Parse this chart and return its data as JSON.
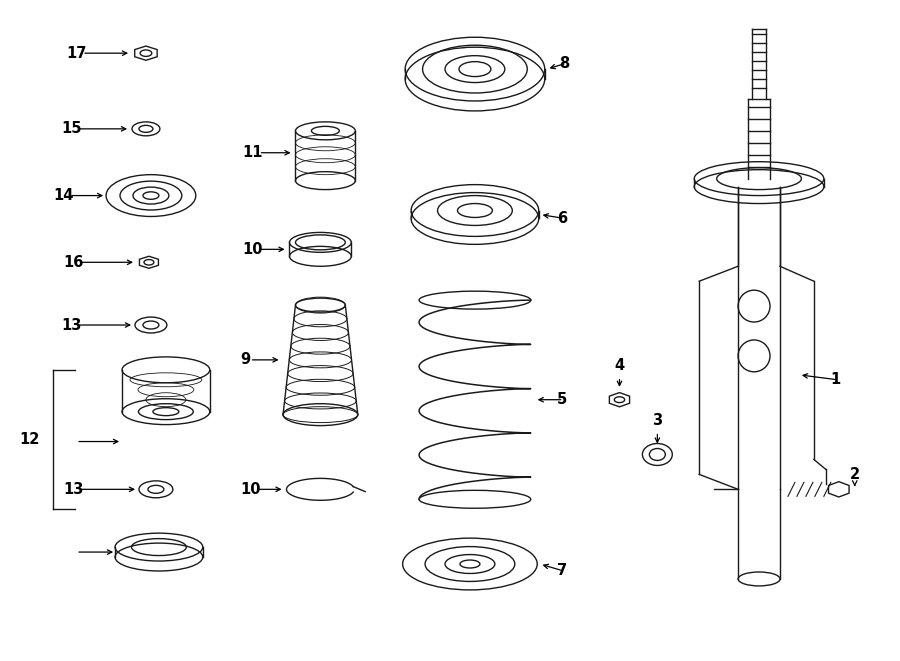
{
  "bg_color": "#ffffff",
  "line_color": "#1a1a1a",
  "lw": 1.0,
  "figsize": [
    9.0,
    6.61
  ],
  "dpi": 100,
  "xlim": [
    0,
    900
  ],
  "ylim": [
    0,
    661
  ],
  "label_fontsize": 10.5
}
